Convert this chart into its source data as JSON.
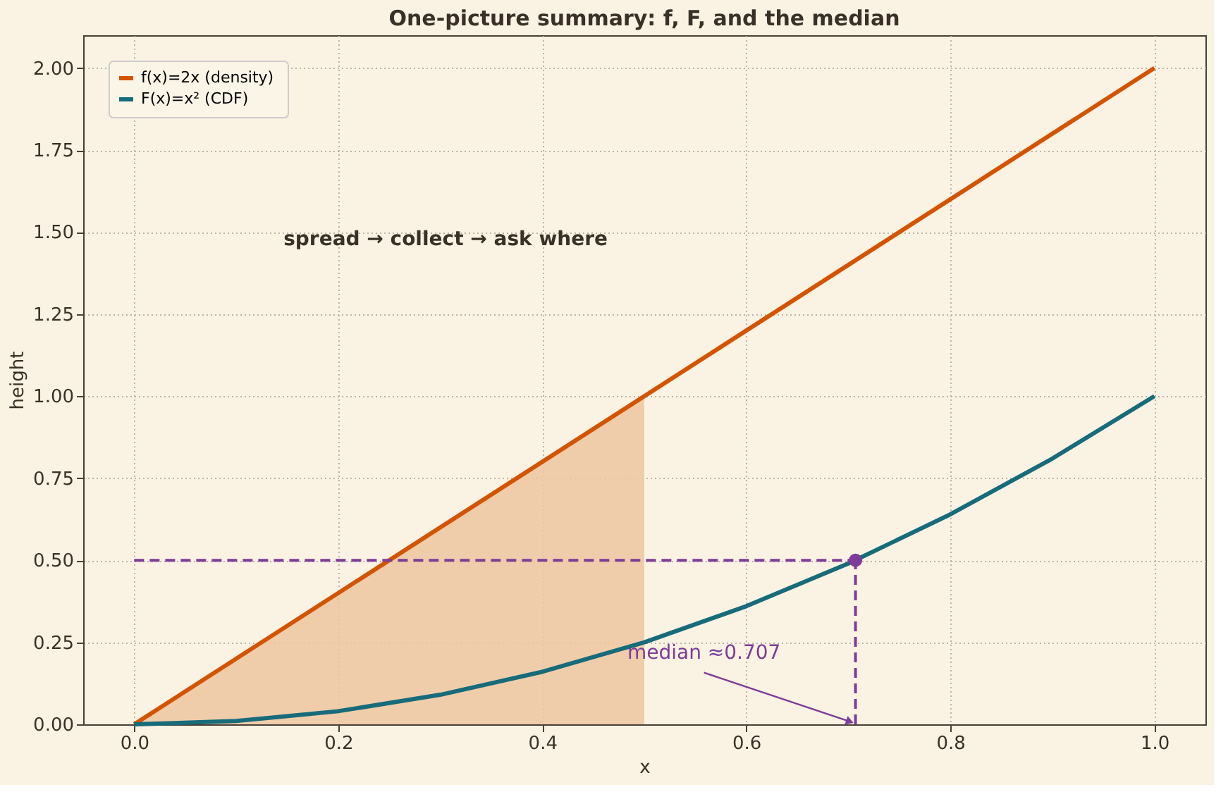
{
  "chart_data": {
    "type": "line",
    "title": "One-picture summary: f, F, and the median",
    "xlabel": "x",
    "ylabel": "height",
    "xlim": [
      -0.05,
      1.05
    ],
    "ylim": [
      0,
      2.1
    ],
    "xticks": [
      {
        "value": 0,
        "label": "0.0"
      },
      {
        "value": 0.2,
        "label": "0.2"
      },
      {
        "value": 0.4,
        "label": "0.4"
      },
      {
        "value": 0.6,
        "label": "0.6"
      },
      {
        "value": 0.8,
        "label": "0.8"
      },
      {
        "value": 1,
        "label": "1.0"
      }
    ],
    "yticks": [
      {
        "value": 0,
        "label": "0.00"
      },
      {
        "value": 0.25,
        "label": "0.25"
      },
      {
        "value": 0.5,
        "label": "0.50"
      },
      {
        "value": 0.75,
        "label": "0.75"
      },
      {
        "value": 1,
        "label": "1.00"
      },
      {
        "value": 1.25,
        "label": "1.25"
      },
      {
        "value": 1.5,
        "label": "1.50"
      },
      {
        "value": 1.75,
        "label": "1.75"
      },
      {
        "value": 2,
        "label": "2.00"
      }
    ],
    "series": [
      {
        "type": "area",
        "color": "#edc7a0",
        "x": [
          0,
          0.5
        ],
        "values": [
          0,
          1
        ]
      },
      {
        "name": "f(x)=2x  (density)",
        "color": "#d35400",
        "x": [
          0,
          1
        ],
        "values": [
          0,
          2
        ]
      },
      {
        "name": "F(x)=x²  (CDF)",
        "color": "#176b7a",
        "x": [
          0,
          0.1,
          0.2,
          0.3,
          0.4,
          0.5,
          0.6,
          0.7,
          0.8,
          0.9,
          1
        ],
        "values": [
          0,
          0.01,
          0.04,
          0.09,
          0.16,
          0.25,
          0.36,
          0.49,
          0.64,
          0.81,
          1
        ]
      },
      {
        "line_style": "dashed",
        "color": "#7d3c98",
        "x": [
          0,
          0.707
        ],
        "values": [
          0.5,
          0.5
        ]
      },
      {
        "line_style": "dashed",
        "color": "#7d3c98",
        "x": [
          0.707,
          0.707
        ],
        "values": [
          0,
          0.5
        ]
      },
      {
        "type": "scatter",
        "marker": "circle",
        "color": "#7d3c98",
        "x": [
          0.707
        ],
        "values": [
          0.5
        ]
      }
    ],
    "annotations": [
      "spread → collect → ask where",
      {
        "text": "median ≈0.707",
        "x": 0.707,
        "y": 0
      }
    ],
    "grid": true,
    "legend": "top left"
  }
}
